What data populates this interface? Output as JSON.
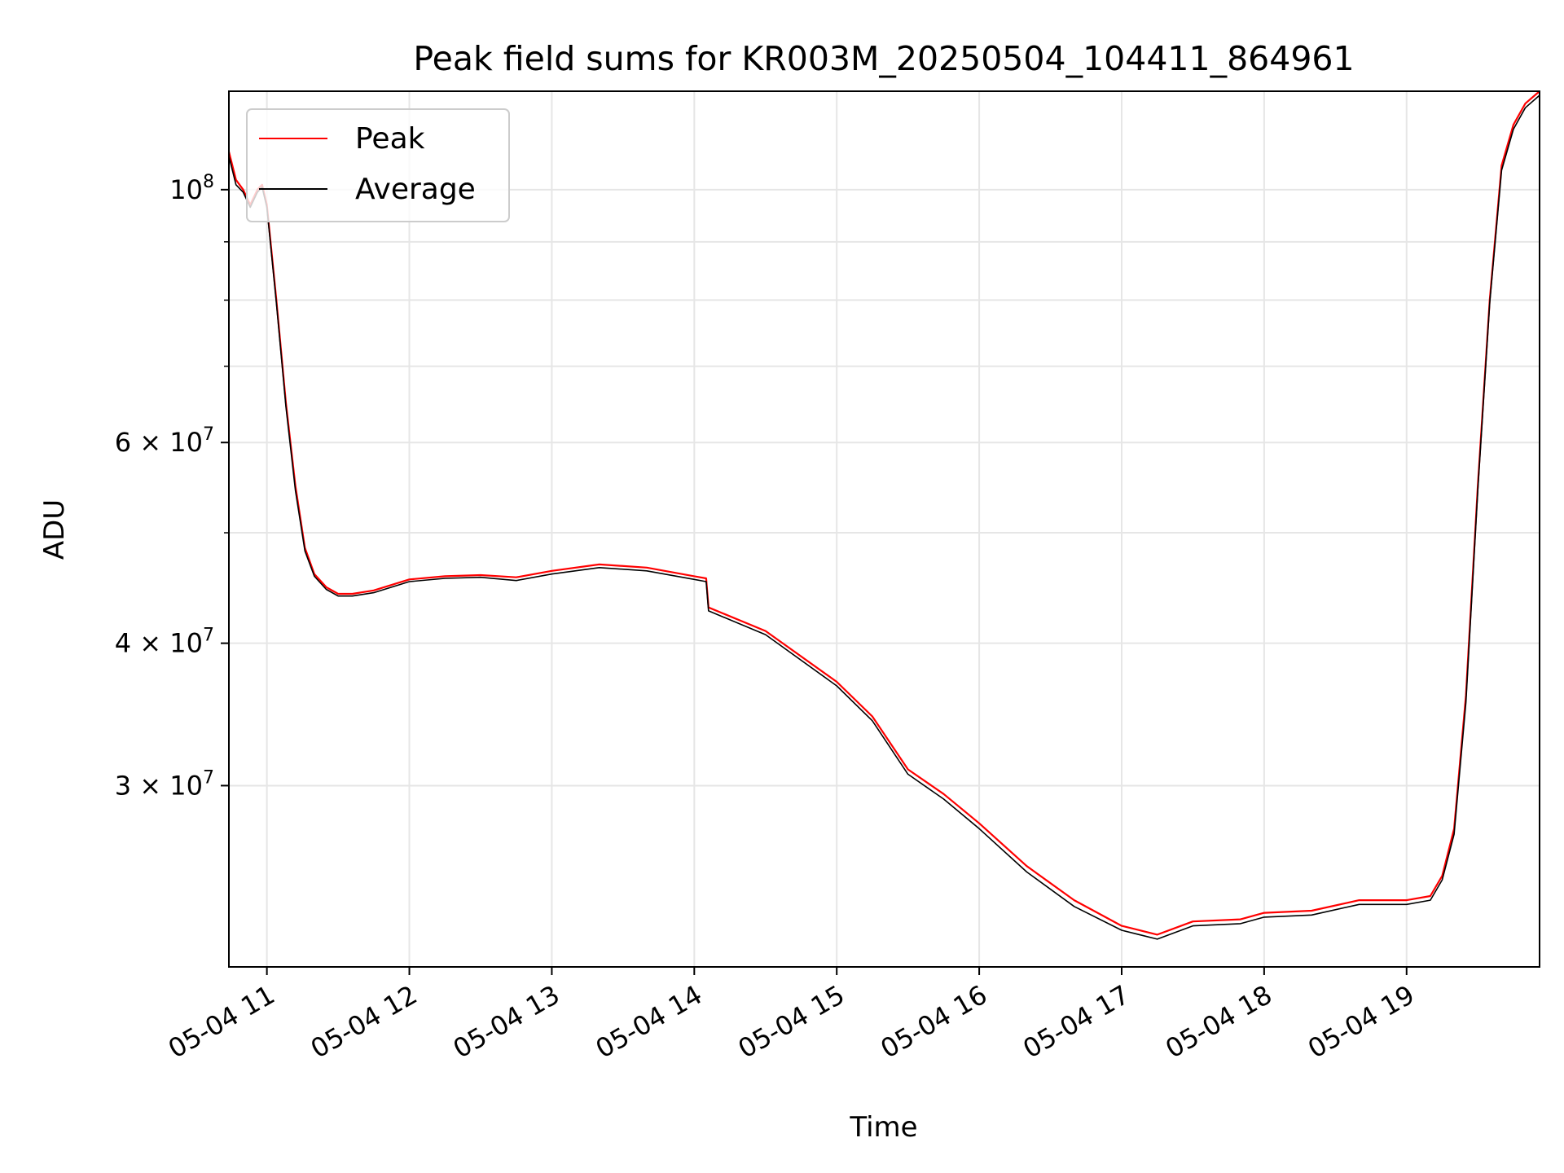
{
  "chart_data": {
    "type": "line",
    "title": "Peak field sums for KR003M_20250504_104411_864961",
    "xlabel": "Time",
    "ylabel": "ADU",
    "x_type": "datetime",
    "xlim": [
      "2025-05-04 10:44",
      "2025-05-04 19:56"
    ],
    "ylim": [
      20800000,
      122000000
    ],
    "y_scale": "log",
    "grid": true,
    "legend_position": "upper-left",
    "x_ticks": [
      {
        "value": "2025-05-04 11:00",
        "label": "05-04 11"
      },
      {
        "value": "2025-05-04 12:00",
        "label": "05-04 12"
      },
      {
        "value": "2025-05-04 13:00",
        "label": "05-04 13"
      },
      {
        "value": "2025-05-04 14:00",
        "label": "05-04 14"
      },
      {
        "value": "2025-05-04 15:00",
        "label": "05-04 15"
      },
      {
        "value": "2025-05-04 16:00",
        "label": "05-04 16"
      },
      {
        "value": "2025-05-04 17:00",
        "label": "05-04 17"
      },
      {
        "value": "2025-05-04 18:00",
        "label": "05-04 18"
      },
      {
        "value": "2025-05-04 19:00",
        "label": "05-04 19"
      }
    ],
    "y_major_ticks": [
      {
        "value": 30000000,
        "mantissa": "3",
        "exponent": "7"
      },
      {
        "value": 40000000,
        "mantissa": "4",
        "exponent": "7"
      },
      {
        "value": 60000000,
        "mantissa": "6",
        "exponent": "7"
      },
      {
        "value": 100000000,
        "mantissa": "",
        "exponent": "8"
      }
    ],
    "y_minor_grid": [
      50000000,
      70000000,
      80000000,
      90000000
    ],
    "x": [
      "2025-05-04 10:44",
      "2025-05-04 10:47",
      "2025-05-04 10:50",
      "2025-05-04 10:53",
      "2025-05-04 10:56",
      "2025-05-04 10:58",
      "2025-05-04 11:00",
      "2025-05-04 11:04",
      "2025-05-04 11:08",
      "2025-05-04 11:12",
      "2025-05-04 11:16",
      "2025-05-04 11:20",
      "2025-05-04 11:25",
      "2025-05-04 11:30",
      "2025-05-04 11:36",
      "2025-05-04 11:45",
      "2025-05-04 12:00",
      "2025-05-04 12:15",
      "2025-05-04 12:30",
      "2025-05-04 12:45",
      "2025-05-04 13:00",
      "2025-05-04 13:20",
      "2025-05-04 13:40",
      "2025-05-04 14:00",
      "2025-05-04 14:05",
      "2025-05-04 14:06",
      "2025-05-04 14:30",
      "2025-05-04 15:00",
      "2025-05-04 15:15",
      "2025-05-04 15:30",
      "2025-05-04 15:45",
      "2025-05-04 16:00",
      "2025-05-04 16:20",
      "2025-05-04 16:40",
      "2025-05-04 17:00",
      "2025-05-04 17:15",
      "2025-05-04 17:30",
      "2025-05-04 17:50",
      "2025-05-04 18:00",
      "2025-05-04 18:20",
      "2025-05-04 18:40",
      "2025-05-04 19:00",
      "2025-05-04 19:10",
      "2025-05-04 19:15",
      "2025-05-04 19:20",
      "2025-05-04 19:25",
      "2025-05-04 19:30",
      "2025-05-04 19:35",
      "2025-05-04 19:40",
      "2025-05-04 19:45",
      "2025-05-04 19:50",
      "2025-05-04 19:56"
    ],
    "series": [
      {
        "name": "Peak",
        "color": "#ff0000",
        "values": [
          108000000,
          102000000,
          100000000,
          97000000,
          100000000,
          101000000,
          97000000,
          80000000,
          65000000,
          55000000,
          48500000,
          46000000,
          44800000,
          44200000,
          44200000,
          44500000,
          45500000,
          45800000,
          45900000,
          45700000,
          46300000,
          46900000,
          46600000,
          45800000,
          45600000,
          43000000,
          41000000,
          37000000,
          34500000,
          31000000,
          29500000,
          27800000,
          25500000,
          23800000,
          22600000,
          22200000,
          22800000,
          22900000,
          23200000,
          23300000,
          23800000,
          23800000,
          24000000,
          25000000,
          27500000,
          36000000,
          55000000,
          80000000,
          105000000,
          114000000,
          119000000,
          122000000
        ]
      },
      {
        "name": "Average",
        "color": "#000000",
        "values": [
          107000000,
          101000000,
          99500000,
          96500000,
          99500000,
          100500000,
          96500000,
          79500000,
          64500000,
          54500000,
          48200000,
          45800000,
          44600000,
          44000000,
          44000000,
          44300000,
          45300000,
          45600000,
          45700000,
          45400000,
          46000000,
          46600000,
          46300000,
          45500000,
          45300000,
          42700000,
          40700000,
          36700000,
          34200000,
          30700000,
          29200000,
          27500000,
          25200000,
          23500000,
          22400000,
          22000000,
          22600000,
          22700000,
          23000000,
          23100000,
          23600000,
          23600000,
          23800000,
          24800000,
          27200000,
          35500000,
          54500000,
          79500000,
          104000000,
          113000000,
          118000000,
          121000000
        ]
      }
    ]
  }
}
